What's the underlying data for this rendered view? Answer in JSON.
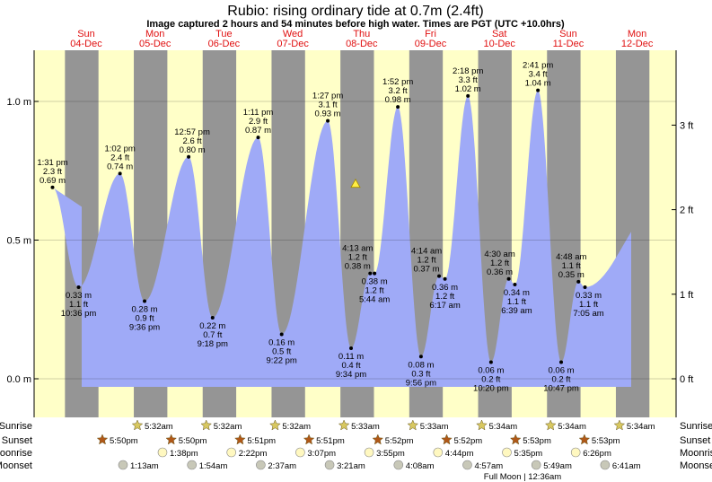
{
  "chart_data": {
    "type": "area",
    "title": "Rubio: rising  ordinary tide at 0.7m (2.4ft)",
    "subtitle": "Image captured 2 hours and 54 minutes before high water. Times are PGT (UTC +10.0hrs)",
    "days": [
      {
        "dow": "Sun",
        "date": "04-Dec"
      },
      {
        "dow": "Mon",
        "date": "05-Dec"
      },
      {
        "dow": "Tue",
        "date": "06-Dec"
      },
      {
        "dow": "Wed",
        "date": "07-Dec"
      },
      {
        "dow": "Thu",
        "date": "08-Dec"
      },
      {
        "dow": "Fri",
        "date": "09-Dec"
      },
      {
        "dow": "Sat",
        "date": "10-Dec"
      },
      {
        "dow": "Sun",
        "date": "11-Dec"
      },
      {
        "dow": "Mon",
        "date": "12-Dec"
      }
    ],
    "y_left": {
      "unit": "m",
      "ylim": [
        -0.2,
        1.2
      ],
      "ticks": [
        0.0,
        0.5,
        1.0
      ],
      "tick_labels": [
        "0.0 m",
        "0.5 m",
        "1.0 m"
      ]
    },
    "y_right": {
      "unit": "ft",
      "ticks": [
        0,
        1,
        2,
        3
      ],
      "tick_labels": [
        "0 ft",
        "1 ft",
        "2 ft",
        "3 ft"
      ]
    },
    "tide_extremes": [
      {
        "type": "high",
        "day": 0,
        "time": "1:31 pm",
        "ft": "2.3 ft",
        "m_label": "0.69 m",
        "m": 0.69
      },
      {
        "type": "low",
        "day": 0,
        "time": "10:36 pm",
        "ft": "1.1 ft",
        "m_label": "0.33 m",
        "m": 0.33
      },
      {
        "type": "high",
        "day": 1,
        "time": "1:02 pm",
        "ft": "2.4 ft",
        "m_label": "0.74 m",
        "m": 0.74
      },
      {
        "type": "low",
        "day": 1,
        "time": "9:36 pm",
        "ft": "0.9 ft",
        "m_label": "0.28 m",
        "m": 0.28
      },
      {
        "type": "high",
        "day": 2,
        "time": "12:57 pm",
        "ft": "2.6 ft",
        "m_label": "0.80 m",
        "m": 0.8
      },
      {
        "type": "low",
        "day": 2,
        "time": "9:18 pm",
        "ft": "0.7 ft",
        "m_label": "0.22 m",
        "m": 0.22
      },
      {
        "type": "high",
        "day": 3,
        "time": "1:11 pm",
        "ft": "2.9 ft",
        "m_label": "0.87 m",
        "m": 0.87
      },
      {
        "type": "low",
        "day": 3,
        "time": "9:22 pm",
        "ft": "0.5 ft",
        "m_label": "0.16 m",
        "m": 0.16
      },
      {
        "type": "high",
        "day": 4,
        "time": "1:27 pm",
        "ft": "3.1 ft",
        "m_label": "0.93 m",
        "m": 0.93
      },
      {
        "type": "low",
        "day": 4,
        "time": "9:34 pm",
        "ft": "0.4 ft",
        "m_label": "0.11 m",
        "m": 0.11
      },
      {
        "type": "high",
        "day": 5,
        "time": "4:13 am",
        "ft": "1.2 ft",
        "m_label": "0.38 m",
        "m": 0.38
      },
      {
        "type": "low",
        "day": 5,
        "time": "5:44 am",
        "ft": "1.2 ft",
        "m_label": "0.38 m",
        "m": 0.38
      },
      {
        "type": "high",
        "day": 5,
        "time": "1:52 pm",
        "ft": "3.2 ft",
        "m_label": "0.98 m",
        "m": 0.98
      },
      {
        "type": "low",
        "day": 5,
        "time": "9:56 pm",
        "ft": "0.3 ft",
        "m_label": "0.08 m",
        "m": 0.08
      },
      {
        "type": "high",
        "day": 6,
        "time": "4:14 am",
        "ft": "1.2 ft",
        "m_label": "0.37 m",
        "m": 0.37
      },
      {
        "type": "low",
        "day": 6,
        "time": "6:17 am",
        "ft": "1.2 ft",
        "m_label": "0.36 m",
        "m": 0.36
      },
      {
        "type": "high",
        "day": 6,
        "time": "2:18 pm",
        "ft": "3.3 ft",
        "m_label": "1.02 m",
        "m": 1.02
      },
      {
        "type": "low",
        "day": 6,
        "time": "10:20 pm",
        "ft": "0.2 ft",
        "m_label": "0.06 m",
        "m": 0.06
      },
      {
        "type": "high",
        "day": 7,
        "time": "4:30 am",
        "ft": "1.2 ft",
        "m_label": "0.36 m",
        "m": 0.36
      },
      {
        "type": "low",
        "day": 7,
        "time": "6:39 am",
        "ft": "1.1 ft",
        "m_label": "0.34 m",
        "m": 0.34
      },
      {
        "type": "high",
        "day": 7,
        "time": "2:41 pm",
        "ft": "3.4 ft",
        "m_label": "1.04 m",
        "m": 1.04
      },
      {
        "type": "low",
        "day": 7,
        "time": "10:47 pm",
        "ft": "0.2 ft",
        "m_label": "0.06 m",
        "m": 0.06
      },
      {
        "type": "high",
        "day": 8,
        "time": "4:48 am",
        "ft": "1.1 ft",
        "m_label": "0.35 m",
        "m": 0.35
      },
      {
        "type": "low",
        "day": 8,
        "time": "7:05 am",
        "ft": "1.1 ft",
        "m_label": "0.33 m",
        "m": 0.33
      }
    ],
    "current_level_m": 0.7,
    "astro_labels": {
      "sunrise": "Sunrise",
      "sunset": "Sunset",
      "moonrise": "Moonrise",
      "moonset": "Moonset"
    },
    "sunrise": [
      "5:32am",
      "5:32am",
      "5:32am",
      "5:33am",
      "5:33am",
      "5:34am",
      "5:34am",
      "5:34am"
    ],
    "sunset": [
      "5:50pm",
      "5:50pm",
      "5:51pm",
      "5:51pm",
      "5:52pm",
      "5:52pm",
      "5:53pm",
      "5:53pm"
    ],
    "moonrise": [
      "1:38pm",
      "2:22pm",
      "3:07pm",
      "3:55pm",
      "4:44pm",
      "5:35pm",
      "6:26pm"
    ],
    "moonset": [
      "1:13am",
      "1:54am",
      "2:37am",
      "3:21am",
      "4:08am",
      "4:57am",
      "5:49am",
      "6:41am"
    ],
    "moon_phase_note": "Full Moon | 12:36am",
    "colors": {
      "water": "#9faaf7",
      "day": "#ffffc8",
      "night": "#959595",
      "day_label": "#e01010",
      "sun_star": "#d8c860",
      "sunset_star": "#b05818"
    }
  }
}
